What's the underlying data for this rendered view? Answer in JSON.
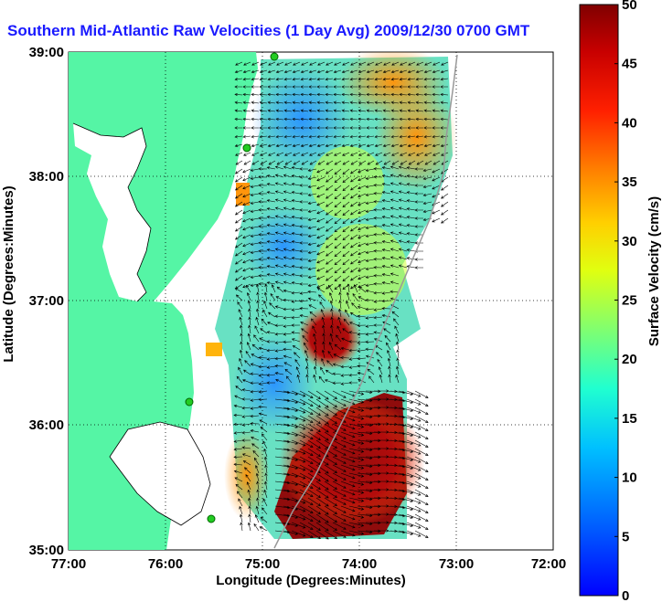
{
  "title": "Southern Mid-Atlantic Raw Velocities (1 Day Avg) 2009/12/30 0700 GMT",
  "axes": {
    "xlabel": "Longitude (Degrees:Minutes)",
    "ylabel": "Latitude (Degrees:Minutes)",
    "x_ticks": [
      "77:00",
      "76:00",
      "75:00",
      "74:00",
      "73:00",
      "72:00"
    ],
    "y_ticks": [
      "39:00",
      "38:00",
      "37:00",
      "36:00",
      "35:00"
    ]
  },
  "colorbar": {
    "label": "Surface Velocity (cm/s)",
    "ticks": [
      "0",
      "5",
      "10",
      "15",
      "20",
      "25",
      "30",
      "35",
      "40",
      "45",
      "50"
    ],
    "min": 0,
    "max": 50
  },
  "colors": {
    "land": "#55f5a5",
    "title": "#1a1aff"
  }
}
